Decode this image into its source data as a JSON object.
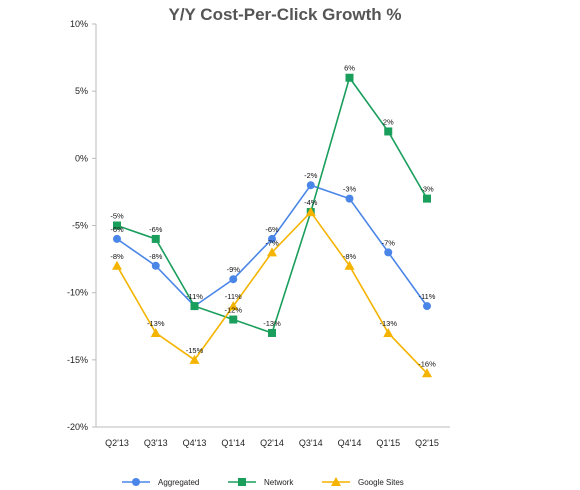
{
  "chart_data": {
    "type": "line",
    "title": "Y/Y Cost-Per-Click Growth %",
    "xlabel": "",
    "ylabel": "",
    "categories": [
      "Q2'13",
      "Q3'13",
      "Q4'13",
      "Q1'14",
      "Q2'14",
      "Q3'14",
      "Q4'14",
      "Q1'15",
      "Q2'15"
    ],
    "y_tick_labels": [
      "10%",
      "5%",
      "0%",
      "-5%",
      "-10%",
      "-15%",
      "-20%"
    ],
    "y_ticks": [
      10,
      5,
      0,
      -5,
      -10,
      -15,
      -20
    ],
    "ylim": [
      -20,
      10
    ],
    "grid": false,
    "legend_position": "bottom",
    "series": [
      {
        "name": "Aggregated",
        "color": "#4a86e8",
        "marker": "circle",
        "values": [
          -6,
          -8,
          -11,
          -9,
          -6,
          -2,
          -3,
          -7,
          -11
        ],
        "labels": [
          "-6%",
          "-8%",
          "-11%",
          "-9%",
          "-6%",
          "-2%",
          "-3%",
          "-7%",
          "-11%"
        ]
      },
      {
        "name": "Network",
        "color": "#1a9e5c",
        "marker": "square",
        "values": [
          -5,
          -6,
          -11,
          -12,
          -13,
          -4,
          6,
          2,
          -3
        ],
        "labels": [
          "-5%",
          "-6%",
          "",
          "-12%",
          "-13%",
          "-4%",
          "6%",
          "2%",
          "-3%"
        ]
      },
      {
        "name": "Google Sites",
        "color": "#f4b400",
        "marker": "triangle",
        "values": [
          -8,
          -13,
          -15,
          -11,
          -7,
          -4,
          -8,
          -13,
          -16
        ],
        "labels": [
          "-8%",
          "-13%",
          "-15%",
          "-11%",
          "-7%",
          "",
          "-8%",
          "-13%",
          "-16%"
        ]
      }
    ]
  }
}
